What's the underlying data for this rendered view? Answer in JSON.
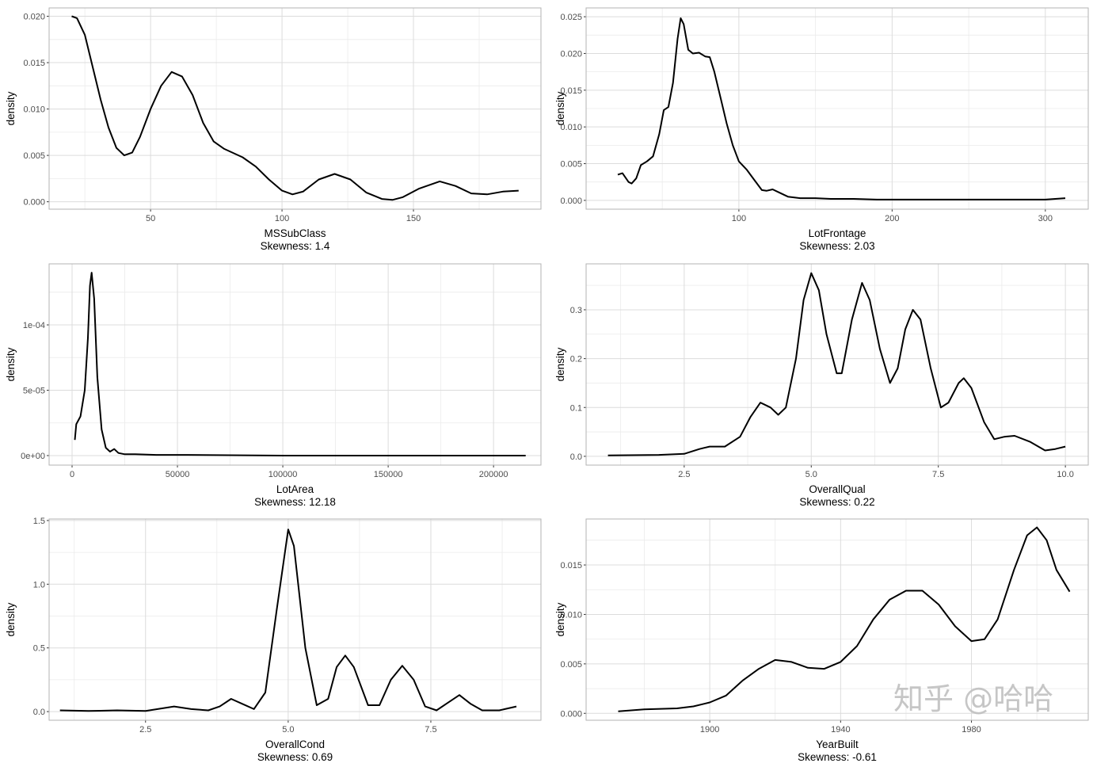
{
  "watermark": "知乎 @哈哈",
  "chart_data": [
    {
      "type": "line",
      "xlabel": "MSSubClass",
      "subtitle": "Skewness: 1.4",
      "ylabel": "density",
      "xlim": [
        11.4,
        198.5
      ],
      "ylim": [
        -0.0008,
        0.0209
      ],
      "xticks": [
        50,
        100,
        150
      ],
      "xtick_labels": [
        "50",
        "100",
        "150"
      ],
      "yticks": [
        0,
        0.005,
        0.01,
        0.015,
        0.02
      ],
      "ytick_labels": [
        "0.000",
        "0.005",
        "0.010",
        "0.015",
        "0.020"
      ],
      "x": [
        20,
        22,
        25,
        28,
        31,
        34,
        37,
        40,
        43,
        46,
        50,
        54,
        58,
        62,
        66,
        70,
        74,
        78,
        85,
        90,
        95,
        100,
        104,
        108,
        114,
        120,
        126,
        132,
        138,
        142,
        146,
        152,
        160,
        166,
        172,
        178,
        184,
        190
      ],
      "y": [
        0.02,
        0.0198,
        0.018,
        0.0145,
        0.011,
        0.008,
        0.0058,
        0.005,
        0.0053,
        0.007,
        0.01,
        0.0125,
        0.014,
        0.0135,
        0.0115,
        0.0085,
        0.0065,
        0.0057,
        0.0048,
        0.0038,
        0.0024,
        0.0012,
        0.0008,
        0.0011,
        0.0024,
        0.003,
        0.0024,
        0.001,
        0.0003,
        0.0002,
        0.0005,
        0.0014,
        0.0022,
        0.0017,
        0.0009,
        0.0008,
        0.0011,
        0.0012
      ]
    },
    {
      "type": "line",
      "xlabel": "LotFrontage",
      "subtitle": "Skewness: 2.03",
      "ylabel": "density",
      "xlim": [
        0.3,
        328
      ],
      "ylim": [
        -0.0012,
        0.0262
      ],
      "xticks": [
        100,
        200,
        300
      ],
      "xtick_labels": [
        "100",
        "200",
        "300"
      ],
      "yticks": [
        0,
        0.005,
        0.01,
        0.015,
        0.02,
        0.025
      ],
      "ytick_labels": [
        "0.000",
        "0.005",
        "0.010",
        "0.015",
        "0.020",
        "0.025"
      ],
      "x": [
        21,
        24,
        28,
        30,
        33,
        36,
        40,
        44,
        48,
        51,
        54,
        57,
        60,
        62,
        64,
        67,
        70,
        74,
        78,
        81,
        84,
        88,
        92,
        96,
        100,
        105,
        110,
        115,
        118,
        122,
        126,
        132,
        140,
        150,
        160,
        175,
        190,
        220,
        260,
        300,
        313
      ],
      "y": [
        0.0035,
        0.0037,
        0.0025,
        0.0023,
        0.003,
        0.0048,
        0.0053,
        0.006,
        0.009,
        0.0123,
        0.0127,
        0.016,
        0.022,
        0.0248,
        0.024,
        0.0205,
        0.02,
        0.0201,
        0.0196,
        0.0195,
        0.0175,
        0.014,
        0.0105,
        0.0075,
        0.0053,
        0.0042,
        0.0028,
        0.0014,
        0.0013,
        0.0015,
        0.0011,
        0.0005,
        0.0003,
        0.0003,
        0.0002,
        0.0002,
        0.0001,
        0.0001,
        0.0001,
        0.0001,
        0.0003
      ]
    },
    {
      "type": "line",
      "xlabel": "LotArea",
      "subtitle": "Skewness: 12.18",
      "ylabel": "density",
      "xlim": [
        -10900,
        222500
      ],
      "ylim": [
        -7.3e-06,
        0.0001467
      ],
      "xticks": [
        0,
        50000,
        100000,
        150000,
        200000
      ],
      "xtick_labels": [
        "0",
        "50000",
        "100000",
        "150000",
        "200000"
      ],
      "yticks": [
        0,
        5e-05,
        0.0001
      ],
      "ytick_labels": [
        "0e+00",
        "5e-05",
        "1e-04"
      ],
      "x": [
        1300,
        2000,
        4000,
        6000,
        7500,
        8500,
        9300,
        10500,
        12000,
        14000,
        16000,
        18000,
        20000,
        22000,
        25000,
        30000,
        40000,
        55000,
        100000,
        215245
      ],
      "y": [
        1.2e-05,
        2.4e-05,
        3e-05,
        5e-05,
        9e-05,
        0.00013,
        0.00014,
        0.00012,
        6e-05,
        2e-05,
        6e-06,
        3e-06,
        5e-06,
        2e-06,
        1e-06,
        1e-06,
        5e-07,
        5e-07,
        0,
        0
      ]
    },
    {
      "type": "line",
      "xlabel": "OverallQual",
      "subtitle": "Skewness: 0.22",
      "ylabel": "density",
      "xlim": [
        0.57,
        10.45
      ],
      "ylim": [
        -0.018,
        0.394
      ],
      "xticks": [
        2.5,
        5,
        7.5,
        10
      ],
      "xtick_labels": [
        "2.5",
        "5.0",
        "7.5",
        "10.0"
      ],
      "yticks": [
        0,
        0.1,
        0.2,
        0.3
      ],
      "ytick_labels": [
        "0.0",
        "0.1",
        "0.2",
        "0.3"
      ],
      "x": [
        1,
        2,
        2.5,
        2.8,
        3,
        3.3,
        3.6,
        3.8,
        4,
        4.2,
        4.35,
        4.5,
        4.7,
        4.85,
        5,
        5.15,
        5.3,
        5.5,
        5.6,
        5.8,
        6,
        6.15,
        6.35,
        6.55,
        6.7,
        6.85,
        7,
        7.15,
        7.35,
        7.55,
        7.7,
        7.9,
        8,
        8.15,
        8.4,
        8.6,
        8.8,
        9,
        9.3,
        9.6,
        9.8,
        10
      ],
      "y": [
        0.002,
        0.003,
        0.005,
        0.015,
        0.02,
        0.02,
        0.04,
        0.08,
        0.11,
        0.1,
        0.085,
        0.1,
        0.2,
        0.32,
        0.375,
        0.34,
        0.25,
        0.17,
        0.17,
        0.28,
        0.355,
        0.32,
        0.22,
        0.15,
        0.18,
        0.26,
        0.3,
        0.28,
        0.18,
        0.1,
        0.11,
        0.15,
        0.16,
        0.14,
        0.07,
        0.035,
        0.04,
        0.042,
        0.03,
        0.012,
        0.015,
        0.02
      ]
    },
    {
      "type": "line",
      "xlabel": "OverallCond",
      "subtitle": "Skewness: 0.69",
      "ylabel": "density",
      "xlim": [
        0.81,
        9.43
      ],
      "ylim": [
        -0.068,
        1.512
      ],
      "xticks": [
        2.5,
        5,
        7.5
      ],
      "xtick_labels": [
        "2.5",
        "5.0",
        "7.5"
      ],
      "yticks": [
        0,
        0.5,
        1,
        1.5
      ],
      "ytick_labels": [
        "0.0",
        "0.5",
        "1.0",
        "1.5"
      ],
      "x": [
        1,
        1.5,
        2,
        2.5,
        3,
        3.3,
        3.6,
        3.8,
        4,
        4.2,
        4.4,
        4.6,
        4.8,
        5,
        5.1,
        5.3,
        5.5,
        5.7,
        5.85,
        6,
        6.15,
        6.4,
        6.6,
        6.8,
        7,
        7.2,
        7.4,
        7.6,
        7.8,
        8,
        8.2,
        8.4,
        8.7,
        9
      ],
      "y": [
        0.01,
        0.005,
        0.01,
        0.005,
        0.04,
        0.02,
        0.01,
        0.04,
        0.1,
        0.06,
        0.02,
        0.15,
        0.8,
        1.43,
        1.3,
        0.5,
        0.05,
        0.1,
        0.35,
        0.44,
        0.35,
        0.05,
        0.05,
        0.25,
        0.36,
        0.25,
        0.04,
        0.01,
        0.07,
        0.13,
        0.06,
        0.01,
        0.01,
        0.04
      ]
    },
    {
      "type": "line",
      "xlabel": "YearBuilt",
      "subtitle": "Skewness: -0.61",
      "ylabel": "density",
      "xlim": [
        1862.2,
        2015.7
      ],
      "ylim": [
        -0.0007,
        0.01965
      ],
      "xticks": [
        1900,
        1940,
        1980
      ],
      "xtick_labels": [
        "1900",
        "1940",
        "1980"
      ],
      "yticks": [
        0,
        0.005,
        0.01,
        0.015
      ],
      "ytick_labels": [
        "0.000",
        "0.005",
        "0.010",
        "0.015"
      ],
      "x": [
        1872,
        1880,
        1890,
        1895,
        1900,
        1905,
        1910,
        1915,
        1920,
        1925,
        1930,
        1935,
        1940,
        1945,
        1950,
        1955,
        1960,
        1965,
        1970,
        1975,
        1980,
        1984,
        1988,
        1993,
        1997,
        2000,
        2003,
        2006,
        2010
      ],
      "y": [
        0.0002,
        0.0004,
        0.0005,
        0.0007,
        0.0011,
        0.0018,
        0.0033,
        0.0045,
        0.0054,
        0.0052,
        0.0046,
        0.0045,
        0.0052,
        0.0068,
        0.0095,
        0.0115,
        0.0124,
        0.0124,
        0.011,
        0.0088,
        0.0073,
        0.0075,
        0.0095,
        0.0145,
        0.018,
        0.0188,
        0.0175,
        0.0145,
        0.0123
      ]
    }
  ]
}
